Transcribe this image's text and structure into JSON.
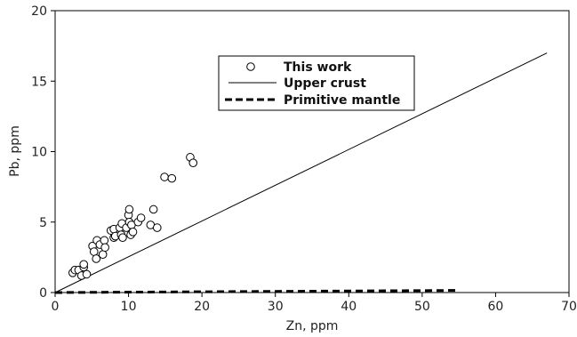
{
  "chart_data": {
    "type": "scatter",
    "title": "",
    "xlabel": "Zn, ppm",
    "ylabel": "Pb, ppm",
    "xlim": [
      0,
      70
    ],
    "ylim": [
      0,
      20
    ],
    "xticks": [
      0,
      10,
      20,
      30,
      40,
      50,
      60,
      70
    ],
    "yticks": [
      0,
      5,
      10,
      15,
      20
    ],
    "xtick_labels": [
      "0",
      "10",
      "20",
      "30",
      "40",
      "50",
      "60",
      "70"
    ],
    "ytick_labels": [
      "0",
      "5",
      "10",
      "15",
      "20"
    ],
    "grid": false,
    "legend_position": "upper-center",
    "series": [
      {
        "name": "This work",
        "kind": "scatter",
        "marker": "open-circle",
        "color": "#000000",
        "points": [
          [
            2.4,
            1.4
          ],
          [
            2.7,
            1.6
          ],
          [
            3.2,
            1.6
          ],
          [
            3.6,
            1.2
          ],
          [
            3.9,
            1.8
          ],
          [
            3.9,
            2.0
          ],
          [
            4.3,
            1.3
          ],
          [
            5.1,
            3.3
          ],
          [
            5.3,
            2.9
          ],
          [
            5.6,
            2.4
          ],
          [
            5.7,
            3.7
          ],
          [
            6.1,
            3.4
          ],
          [
            6.5,
            2.7
          ],
          [
            6.7,
            3.7
          ],
          [
            6.8,
            3.2
          ],
          [
            7.6,
            4.4
          ],
          [
            8.0,
            4.5
          ],
          [
            8.0,
            3.9
          ],
          [
            8.2,
            4.0
          ],
          [
            8.8,
            4.6
          ],
          [
            9.1,
            4.9
          ],
          [
            9.0,
            4.1
          ],
          [
            9.2,
            3.9
          ],
          [
            9.7,
            4.6
          ],
          [
            10.0,
            5.5
          ],
          [
            10.1,
            5.9
          ],
          [
            10.1,
            5.0
          ],
          [
            10.3,
            4.1
          ],
          [
            10.4,
            4.8
          ],
          [
            10.6,
            4.3
          ],
          [
            11.3,
            5.0
          ],
          [
            11.7,
            5.3
          ],
          [
            13.0,
            4.8
          ],
          [
            13.4,
            5.9
          ],
          [
            13.9,
            4.6
          ],
          [
            14.9,
            8.2
          ],
          [
            15.9,
            8.1
          ],
          [
            18.4,
            9.6
          ],
          [
            18.8,
            9.2
          ]
        ]
      },
      {
        "name": "Upper crust",
        "kind": "line",
        "style": "solid",
        "color": "#000000",
        "x": [
          0,
          67
        ],
        "y": [
          0,
          17
        ]
      },
      {
        "name": "Primitive mantle",
        "kind": "line",
        "style": "dashed",
        "color": "#000000",
        "x": [
          0,
          55
        ],
        "y": [
          0,
          0.15
        ]
      }
    ]
  }
}
